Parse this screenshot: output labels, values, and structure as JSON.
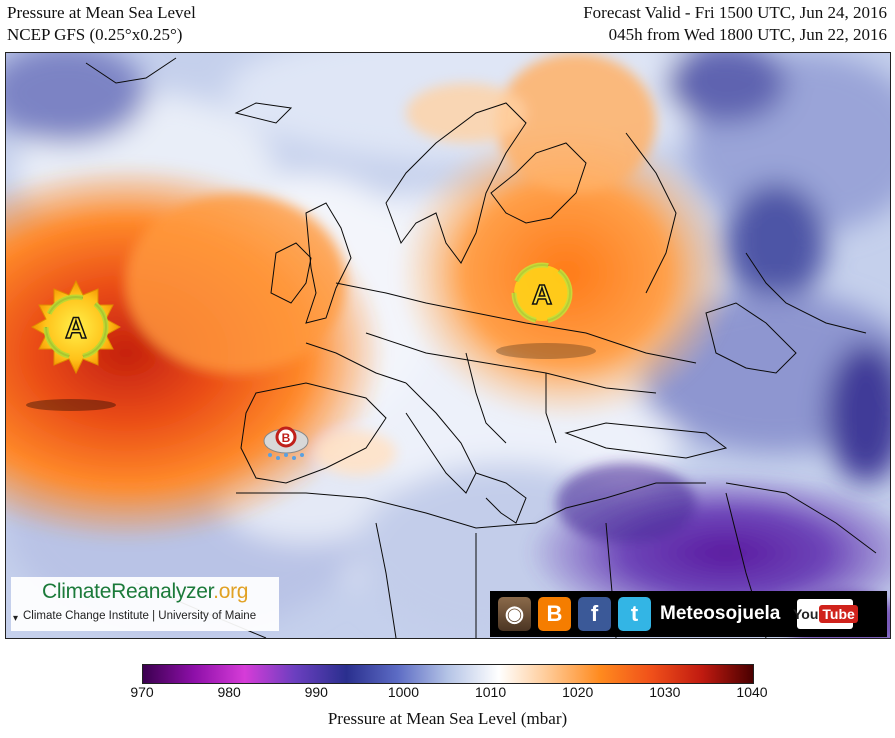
{
  "header": {
    "title": "Pressure at Mean Sea Level",
    "model": "NCEP GFS (0.25°x0.25°)",
    "valid": "Forecast Valid - Fri 1500 UTC, Jun 24, 2016",
    "lead": "045h from Wed 1800 UTC, Jun 22, 2016"
  },
  "map": {
    "high_symbol_label": "A",
    "low_symbol_label": "B",
    "high_pressure_centers": [
      "Atlantic (Azores)",
      "Eastern Europe"
    ],
    "low_pressure_centers": [
      "Iberian Peninsula"
    ]
  },
  "logo": {
    "title_main": "ClimateReanalyzer",
    "title_suffix": ".org",
    "subtitle": "Climate Change Institute | University of Maine"
  },
  "social": {
    "name": "Meteosojuela",
    "icons": [
      "instagram-icon",
      "blogger-icon",
      "facebook-icon",
      "twitter-icon",
      "youtube-icon"
    ],
    "youtube_you": "You",
    "youtube_tube": "Tube"
  },
  "colorbar": {
    "title": "Pressure at Mean Sea Level (mbar)",
    "ticks": [
      "970",
      "980",
      "990",
      "1000",
      "1010",
      "1020",
      "1030",
      "1040"
    ],
    "min": 970,
    "max": 1040,
    "colors": [
      "#3b004f",
      "#8d0fa8",
      "#d63cd8",
      "#6a3fbf",
      "#2a2f8e",
      "#5c6bc4",
      "#b5c4e6",
      "#ffffff",
      "#ffc892",
      "#ff8a1e",
      "#f0501a",
      "#c01a10",
      "#4a0000"
    ]
  }
}
